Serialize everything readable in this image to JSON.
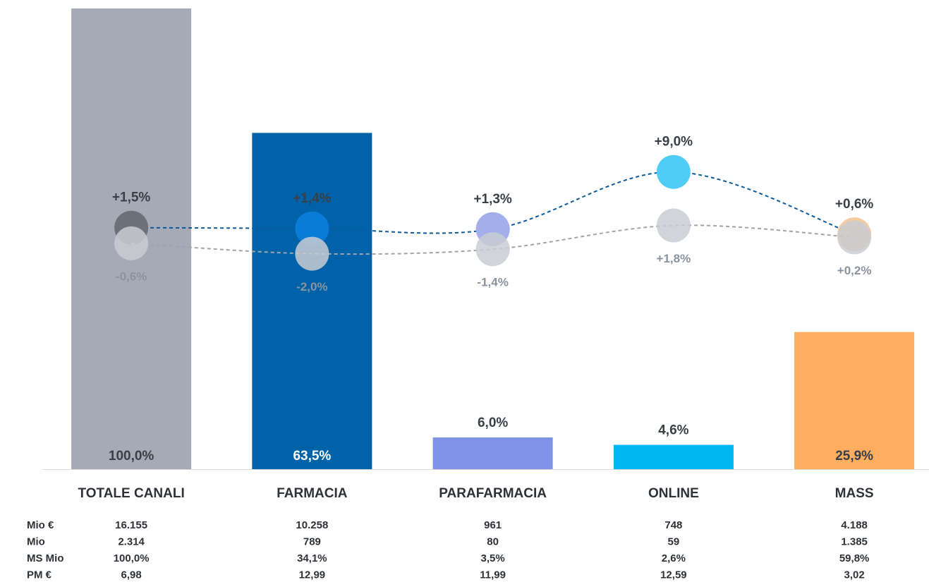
{
  "chart_data": {
    "type": "bar",
    "categories": [
      "TOTALE CANALI",
      "FARMACIA",
      "PARAFARMACIA",
      "ONLINE",
      "MASS"
    ],
    "values": [
      100,
      63.5,
      6.0,
      4.6,
      25.9
    ],
    "value_labels": [
      "100,0%",
      "63,5%",
      "6,0%",
      "4,6%",
      "25,9%"
    ],
    "colors": [
      "#a5aab6",
      "#0062a8",
      "#8193e6",
      "#00b7f1",
      "#feae5e"
    ],
    "value_label_colors": [
      "#3a3f47",
      "#ffffff",
      "#3a3f47",
      "#3a3f47",
      "#3a3f47"
    ],
    "ylim": [
      0,
      87
    ],
    "y2lim": [
      -31,
      31
    ],
    "series": [
      {
        "name": null,
        "type": "line",
        "axis": "y2",
        "color": "#0a5a9c",
        "dashed": true,
        "marker_colors": [
          "#6b7079",
          "#0a7bd6",
          "#a3aeea",
          "#4fcdf7",
          "#f7caa0"
        ],
        "values": [
          1.5,
          1.4,
          1.3,
          9.0,
          0.6
        ],
        "value_labels": [
          "+1,5%",
          "+1,4%",
          "+1,3%",
          "+9,0%",
          "+0,6%"
        ],
        "label_color": "#3a3f47",
        "label_position": "above"
      },
      {
        "name": null,
        "type": "line",
        "axis": "y2",
        "color": "#a0a4ad",
        "dashed": true,
        "marker_colors": [
          "#c9ccd2",
          "#c9ccd2",
          "#c9ccd2",
          "#c9ccd2",
          "#c9ccd2"
        ],
        "values": [
          -0.6,
          -2.0,
          -1.4,
          1.8,
          0.2
        ],
        "value_labels": [
          "-0,6%",
          "-2,0%",
          "-1,4%",
          "+1,8%",
          "+0,2%"
        ],
        "label_color": "#8a93a0",
        "label_position": "below"
      }
    ],
    "table": {
      "rows": [
        {
          "label": "Mio €",
          "values": [
            "16.155",
            "10.258",
            "961",
            "748",
            "4.188"
          ]
        },
        {
          "label": "Mio",
          "values": [
            "2.314",
            "789",
            "80",
            "59",
            "1.385"
          ]
        },
        {
          "label": "MS Mio",
          "values": [
            "100,0%",
            "34,1%",
            "3,5%",
            "2,6%",
            "59,8%"
          ]
        },
        {
          "label": "PM €",
          "values": [
            "6,98",
            "12,99",
            "11,99",
            "12,59",
            "3,02"
          ]
        }
      ]
    }
  }
}
